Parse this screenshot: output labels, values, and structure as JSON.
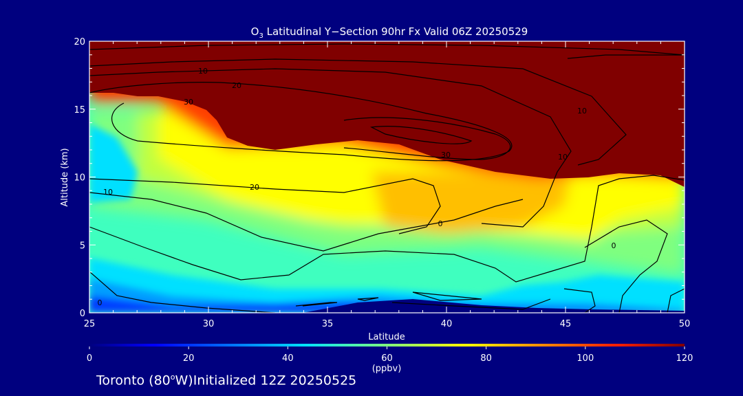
{
  "chart_data": {
    "type": "heatmap",
    "title_prefix": "O",
    "title_sub": "3",
    "title_rest": " Latitudinal Y−Section 90hr  Fx Valid 06Z 20250529",
    "xlabel": "Latitude",
    "ylabel": "Altitude (km)",
    "xlim": [
      25,
      50
    ],
    "ylim": [
      0,
      20
    ],
    "x_ticks": [
      "25",
      "30",
      "35",
      "40",
      "45",
      "50"
    ],
    "y_ticks": [
      "0",
      "5",
      "10",
      "15",
      "20"
    ],
    "colorbar": {
      "range": [
        0,
        120
      ],
      "ticks": [
        "0",
        "20",
        "40",
        "60",
        "80",
        "100",
        "120"
      ],
      "unit": "(ppbv)"
    },
    "contour_labels": [
      "0",
      "10",
      "20",
      "30",
      "30",
      "10",
      "10",
      "20",
      "10",
      "0",
      "0"
    ],
    "footer_place": "Toronto (80",
    "footer_deg": "o",
    "footer_rest": "W)Initialized 12Z 20250525"
  },
  "colors": {
    "background": "#00007f",
    "saturated": "#800000"
  }
}
